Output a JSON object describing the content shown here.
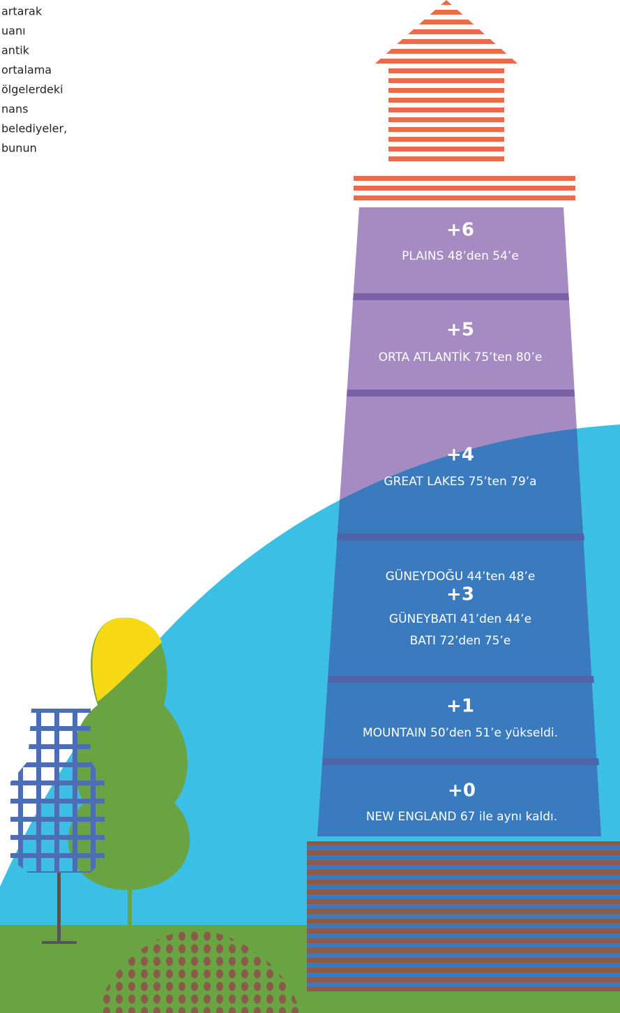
{
  "intro_lines": [
    "artarak",
    "uanı",
    "antik",
    "ortalama",
    "ölgelerdeki",
    "nans",
    "belediyeler,",
    "bunun"
  ],
  "sections": [
    {
      "change": "+6",
      "lines": [
        "PLAINS 48’den 54’e"
      ]
    },
    {
      "change": "+5",
      "lines": [
        "ORTA ATLANTİK 75’ten 80’e"
      ]
    },
    {
      "change": "+4",
      "lines": [
        "GREAT LAKES 75’ten 79’a"
      ]
    },
    {
      "change": "+3",
      "lines_before": [
        "GÜNEYDOĞU 44’ten 48’e"
      ],
      "lines": [
        "GÜNEYBATI 41’den 44’e",
        "BATI 72’den 75’e"
      ]
    },
    {
      "change": "+1",
      "lines": [
        "MOUNTAIN 50’den 51’e yükseldi."
      ]
    },
    {
      "change": "+0",
      "lines": [
        "NEW ENGLAND 67 ile aynı kaldı."
      ]
    }
  ]
}
